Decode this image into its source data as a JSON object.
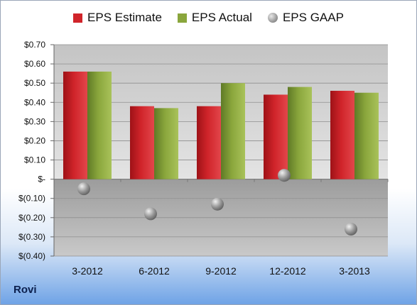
{
  "company": "Rovi",
  "colors": {
    "estimate": "#d0242a",
    "actual": "#8aa63c",
    "gaap": "#9a9a9a"
  },
  "chart_data": {
    "type": "bar",
    "title": "",
    "xlabel": "",
    "ylabel": "",
    "categories": [
      "3-2012",
      "6-2012",
      "9-2012",
      "12-2012",
      "3-2013"
    ],
    "series": [
      {
        "name": "EPS Estimate",
        "kind": "bar",
        "values": [
          0.56,
          0.38,
          0.38,
          0.44,
          0.46
        ]
      },
      {
        "name": "EPS Actual",
        "kind": "bar",
        "values": [
          0.56,
          0.37,
          0.5,
          0.48,
          0.45
        ]
      },
      {
        "name": "EPS GAAP",
        "kind": "scatter",
        "values": [
          -0.05,
          -0.18,
          -0.13,
          0.02,
          -0.26
        ]
      }
    ],
    "ylim": [
      -0.4,
      0.7
    ],
    "yticks": [
      0.7,
      0.6,
      0.5,
      0.4,
      0.3,
      0.2,
      0.1,
      0,
      -0.1,
      -0.2,
      -0.3,
      -0.4
    ],
    "ytick_labels": [
      "$0.70",
      "$0.60",
      "$0.50",
      "$0.40",
      "$0.30",
      "$0.20",
      "$0.10",
      "$-",
      "$(0.10)",
      "$(0.20)",
      "$(0.30)",
      "$(0.40)"
    ],
    "legend_position": "top-center",
    "grid": true
  }
}
